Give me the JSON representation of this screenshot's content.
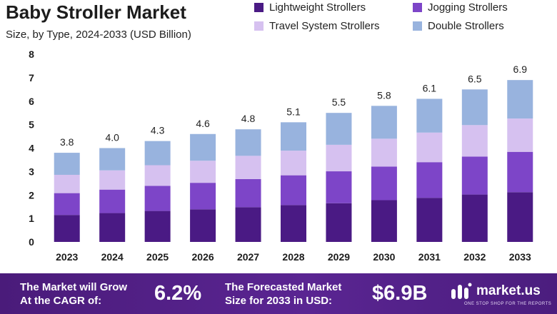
{
  "header": {
    "title": "Baby Stroller Market",
    "subtitle": "Size, by Type, 2024-2033 (USD Billion)"
  },
  "colors": {
    "lightweight": "#4a1a84",
    "jogging": "#7d45c8",
    "travel": "#d6c1f0",
    "double": "#98b3de",
    "footer_bg": "#52208a"
  },
  "chart_data": {
    "type": "bar",
    "stacked": true,
    "categories": [
      "2023",
      "2024",
      "2025",
      "2026",
      "2027",
      "2028",
      "2029",
      "2030",
      "2031",
      "2032",
      "2033"
    ],
    "totals": [
      3.8,
      4.0,
      4.3,
      4.6,
      4.8,
      5.1,
      5.5,
      5.8,
      6.1,
      6.5,
      6.9
    ],
    "series": [
      {
        "name": "Lightweight Strollers",
        "values": [
          1.15,
          1.23,
          1.32,
          1.39,
          1.48,
          1.57,
          1.65,
          1.78,
          1.88,
          2.02,
          2.12
        ]
      },
      {
        "name": "Jogging Strollers",
        "values": [
          0.93,
          1.0,
          1.07,
          1.13,
          1.2,
          1.27,
          1.36,
          1.43,
          1.52,
          1.62,
          1.72
        ]
      },
      {
        "name": "Travel System Strollers",
        "values": [
          0.78,
          0.82,
          0.88,
          0.94,
          0.99,
          1.05,
          1.13,
          1.19,
          1.26,
          1.34,
          1.42
        ]
      },
      {
        "name": "Double Strollers",
        "values": [
          0.94,
          0.95,
          1.03,
          1.14,
          1.13,
          1.21,
          1.36,
          1.4,
          1.44,
          1.52,
          1.64
        ]
      }
    ],
    "ylim": [
      0,
      8
    ],
    "yticks": [
      0,
      1,
      2,
      3,
      4,
      5,
      6,
      7,
      8
    ],
    "grid": false,
    "legend": "top-right"
  },
  "footer": {
    "cagr_text_1": "The Market will Grow",
    "cagr_text_2": "At the CAGR of:",
    "cagr_value": "6.2%",
    "forecast_text_1": "The Forecasted Market",
    "forecast_text_2": "Size for 2033 in USD:",
    "forecast_value": "$6.9B",
    "brand_name": "market.us",
    "brand_tagline": "ONE STOP SHOP FOR THE REPORTS"
  }
}
